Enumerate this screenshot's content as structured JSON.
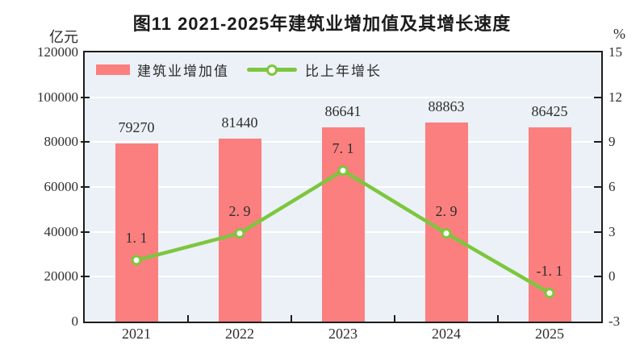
{
  "header": {
    "title": "图11  2021-2025年建筑业增加值及其增长速度"
  },
  "chart_data": {
    "type": "bar+line combo",
    "title": "图11  2021-2025年建筑业增加值及其增长速度",
    "categories": [
      "2021",
      "2022",
      "2023",
      "2024",
      "2025"
    ],
    "series": [
      {
        "name": "建筑业增加值",
        "type": "bar",
        "axis": "left",
        "unit": "亿元",
        "values": [
          79270,
          81440,
          86641,
          88863,
          86425
        ],
        "labels": [
          "79270",
          "81440",
          "86641",
          "88863",
          "86425"
        ],
        "color": "#FB7F7F"
      },
      {
        "name": "比上年增长",
        "type": "line",
        "axis": "right",
        "unit": "%",
        "values": [
          1.1,
          2.9,
          7.1,
          2.9,
          -1.1
        ],
        "labels": [
          "1. 1",
          "2. 9",
          "7. 1",
          "2. 9",
          "-1. 1"
        ],
        "color": "#7DC63E"
      }
    ],
    "left_axis": {
      "title": "亿元",
      "min": 0,
      "max": 120000,
      "step": 20000,
      "ticks": [
        "0",
        "20000",
        "40000",
        "60000",
        "80000",
        "100000",
        "120000"
      ]
    },
    "right_axis": {
      "title": "%",
      "min": -3,
      "max": 15,
      "step": 3,
      "ticks": [
        "-3",
        "0",
        "3",
        "6",
        "9",
        "12",
        "15"
      ]
    },
    "legend": {
      "position": "top-left-inside"
    },
    "grid": true,
    "plot_background": "#EBF1F6",
    "grid_color": "#FFFFFF",
    "marker_fill": "#FCFEF2",
    "axis_color": "#1c1c1c"
  }
}
